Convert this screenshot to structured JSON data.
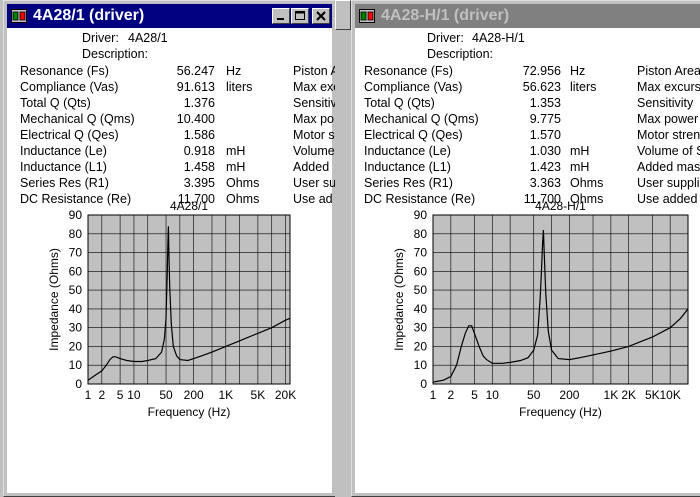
{
  "windows": [
    {
      "id": "w1",
      "title": "4A28/1 (driver)",
      "active": true,
      "driver_label": "Driver:",
      "driver_value": "4A28/1",
      "description_label": "Description:",
      "params": [
        {
          "label": "Resonance (Fs)",
          "value": "56.247",
          "unit": "Hz",
          "right": "Piston A"
        },
        {
          "label": "Compliance (Vas)",
          "value": "91.613",
          "unit": "liters",
          "right": "Max exc"
        },
        {
          "label": "Total Q (Qts)",
          "value": "1.376",
          "unit": "",
          "right": "Sensitiv"
        },
        {
          "label": "Mechanical Q (Qms)",
          "value": "10.400",
          "unit": "",
          "right": "Max po"
        },
        {
          "label": "Electrical Q (Qes)",
          "value": "1.586",
          "unit": "",
          "right": "Motor s"
        },
        {
          "label": "Inductance (Le)",
          "value": "0.918",
          "unit": "mH",
          "right": "Volume"
        },
        {
          "label": "Inductance (L1)",
          "value": "1.458",
          "unit": "mH",
          "right": "Added"
        },
        {
          "label": "Series Res (R1)",
          "value": "3.395",
          "unit": "Ohms",
          "right": "User su"
        },
        {
          "label": "DC Resistance (Re)",
          "value": "11.700",
          "unit": "Ohms",
          "right": "Use ad"
        }
      ]
    },
    {
      "id": "w2",
      "title": "4A28-H/1 (driver)",
      "active": false,
      "driver_label": "Driver:",
      "driver_value": "4A28-H/1",
      "description_label": "Description:",
      "params": [
        {
          "label": "Resonance (Fs)",
          "value": "72.956",
          "unit": "Hz",
          "right": "Piston Area"
        },
        {
          "label": "Compliance (Vas)",
          "value": "56.623",
          "unit": "liters",
          "right": "Max excurs"
        },
        {
          "label": "Total Q (Qts)",
          "value": "1.353",
          "unit": "",
          "right": "Sensitivity"
        },
        {
          "label": "Mechanical Q (Qms)",
          "value": "9.775",
          "unit": "",
          "right": "Max power"
        },
        {
          "label": "Electrical Q (Qes)",
          "value": "1.570",
          "unit": "",
          "right": "Motor stren"
        },
        {
          "label": "Inductance (Le)",
          "value": "1.030",
          "unit": "mH",
          "right": "Volume of S"
        },
        {
          "label": "Inductance (L1)",
          "value": "1.423",
          "unit": "mH",
          "right": "Added mas"
        },
        {
          "label": "Series Res (R1)",
          "value": "3.363",
          "unit": "Ohms",
          "right": "User suppli"
        },
        {
          "label": "DC Resistance (Re)",
          "value": "11.700",
          "unit": "Ohms",
          "right": "Use added"
        }
      ]
    }
  ],
  "colors": {
    "title_active": "#000080",
    "title_inactive": "#808080",
    "plot_bg": "#c0c0c0",
    "window_bg": "#ffffff"
  },
  "icons": {
    "app": "speaker-app-icon",
    "minimize": "minimize-icon",
    "maximize": "maximize-icon",
    "close": "close-icon"
  },
  "chart_data": [
    {
      "type": "line",
      "title": "4A28/1",
      "xlabel": "Frequency (Hz)",
      "ylabel": "Impedance (Ohms)",
      "xscale": "log",
      "xlim": [
        1,
        25000
      ],
      "ylim": [
        0,
        90
      ],
      "grid": true,
      "yticks": [
        "0",
        "10",
        "20",
        "30",
        "40",
        "50",
        "60",
        "70",
        "80",
        "90"
      ],
      "xticks": [
        {
          "v": 1,
          "label": "1"
        },
        {
          "v": 2,
          "label": "2"
        },
        {
          "v": 5,
          "label": "5"
        },
        {
          "v": 10,
          "label": "10"
        },
        {
          "v": 20,
          "label": ""
        },
        {
          "v": 50,
          "label": "50"
        },
        {
          "v": 100,
          "label": ""
        },
        {
          "v": 200,
          "label": "200"
        },
        {
          "v": 500,
          "label": ""
        },
        {
          "v": 1000,
          "label": "1K"
        },
        {
          "v": 2000,
          "label": ""
        },
        {
          "v": 5000,
          "label": "5K"
        },
        {
          "v": 10000,
          "label": ""
        },
        {
          "v": 20000,
          "label": "20K"
        }
      ],
      "series": [
        {
          "values": [
            [
              1,
              2
            ],
            [
              1.5,
              5
            ],
            [
              2,
              7
            ],
            [
              2.5,
              10
            ],
            [
              3,
              13
            ],
            [
              3.5,
              14.5
            ],
            [
              4,
              14.5
            ],
            [
              5,
              13.5
            ],
            [
              7,
              12.5
            ],
            [
              10,
              12
            ],
            [
              15,
              12
            ],
            [
              20,
              12.5
            ],
            [
              30,
              13.5
            ],
            [
              40,
              17
            ],
            [
              46,
              24
            ],
            [
              50,
              35
            ],
            [
              53,
              58
            ],
            [
              55,
              75
            ],
            [
              56.2,
              84
            ],
            [
              57.5,
              72
            ],
            [
              60,
              52
            ],
            [
              65,
              32
            ],
            [
              72,
              20
            ],
            [
              85,
              15
            ],
            [
              100,
              13
            ],
            [
              150,
              12.5
            ],
            [
              200,
              13.5
            ],
            [
              300,
              15
            ],
            [
              500,
              17
            ],
            [
              1000,
              20
            ],
            [
              2000,
              23
            ],
            [
              5000,
              27
            ],
            [
              10000,
              30
            ],
            [
              20000,
              34
            ],
            [
              25000,
              35
            ]
          ]
        }
      ]
    },
    {
      "type": "line",
      "title": "4A28-H/1",
      "xlabel": "Frequency (Hz)",
      "ylabel": "Impedance (Ohms)",
      "xscale": "log",
      "xlim": [
        1,
        20000
      ],
      "ylim": [
        0,
        90
      ],
      "grid": true,
      "yticks": [
        "0",
        "10",
        "20",
        "30",
        "40",
        "50",
        "60",
        "70",
        "80",
        "90"
      ],
      "xticks": [
        {
          "v": 1,
          "label": "1"
        },
        {
          "v": 2,
          "label": "2"
        },
        {
          "v": 5,
          "label": "5"
        },
        {
          "v": 10,
          "label": "10"
        },
        {
          "v": 20,
          "label": ""
        },
        {
          "v": 50,
          "label": "50"
        },
        {
          "v": 100,
          "label": ""
        },
        {
          "v": 200,
          "label": "200"
        },
        {
          "v": 500,
          "label": ""
        },
        {
          "v": 1000,
          "label": "1K"
        },
        {
          "v": 2000,
          "label": "2K"
        },
        {
          "v": 5000,
          "label": "5K"
        },
        {
          "v": 10000,
          "label": "10K"
        }
      ],
      "series": [
        {
          "values": [
            [
              1,
              1
            ],
            [
              1.5,
              2
            ],
            [
              2,
              4
            ],
            [
              2.5,
              10
            ],
            [
              3,
              20
            ],
            [
              3.5,
              27
            ],
            [
              4,
              31
            ],
            [
              4.5,
              31
            ],
            [
              5,
              27
            ],
            [
              6,
              20
            ],
            [
              7,
              15
            ],
            [
              8,
              13
            ],
            [
              10,
              11
            ],
            [
              15,
              11
            ],
            [
              20,
              11.5
            ],
            [
              30,
              12.5
            ],
            [
              40,
              14
            ],
            [
              50,
              18
            ],
            [
              58,
              26
            ],
            [
              64,
              45
            ],
            [
              68,
              62
            ],
            [
              70.5,
              75
            ],
            [
              72.9,
              82
            ],
            [
              75,
              70
            ],
            [
              80,
              48
            ],
            [
              88,
              28
            ],
            [
              100,
              18
            ],
            [
              130,
              13.5
            ],
            [
              200,
              13
            ],
            [
              300,
              14
            ],
            [
              500,
              15.5
            ],
            [
              1000,
              17.5
            ],
            [
              2000,
              20
            ],
            [
              5000,
              25
            ],
            [
              10000,
              30
            ],
            [
              15000,
              35
            ],
            [
              20000,
              40
            ]
          ]
        }
      ]
    }
  ]
}
